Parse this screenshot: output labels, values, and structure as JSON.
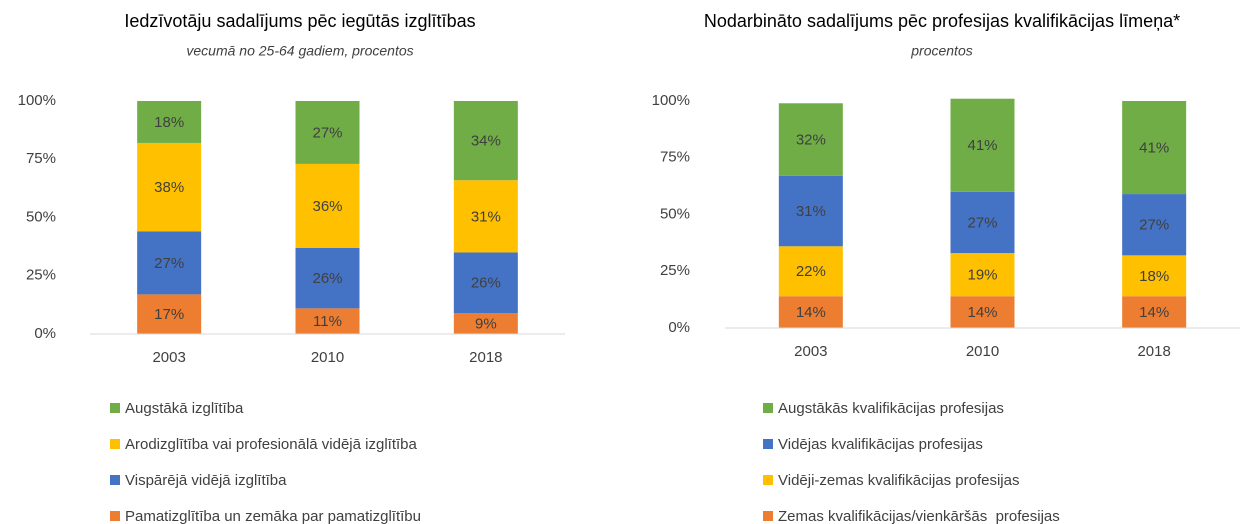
{
  "chart_data": [
    {
      "type": "stacked_bar",
      "title": "Iedzīvotāju sadalījums pēc iegūtās izglītības",
      "subtitle": "vecumā no 25-64 gadiem, procentos",
      "categories": [
        "2003",
        "2010",
        "2018"
      ],
      "ylim": [
        0,
        100
      ],
      "yticks": [
        {
          "value": 0,
          "label": "0%"
        },
        {
          "value": 25,
          "label": "25%"
        },
        {
          "value": 50,
          "label": "50%"
        },
        {
          "value": 75,
          "label": "75%"
        },
        {
          "value": 100,
          "label": "100%"
        }
      ],
      "series": [
        {
          "name": "Pamatizglītība un zemāka par pamatizglītību",
          "color": "#ed7d31",
          "values": [
            17,
            11,
            9
          ],
          "value_labels": [
            "17%",
            "11%",
            "9%"
          ]
        },
        {
          "name": "Vispārējā vidējā izglītība",
          "color": "#4472c4",
          "values": [
            27,
            26,
            26
          ],
          "value_labels": [
            "27%",
            "26%",
            "26%"
          ]
        },
        {
          "name": "Arodizglītība vai profesionālā vidējā izglītība",
          "color": "#ffc000",
          "values": [
            38,
            36,
            31
          ],
          "value_labels": [
            "38%",
            "36%",
            "31%"
          ]
        },
        {
          "name": "Augstākā izglītība",
          "color": "#70ad47",
          "values": [
            18,
            27,
            34
          ],
          "value_labels": [
            "18%",
            "27%",
            "34%"
          ]
        }
      ]
    },
    {
      "type": "stacked_bar",
      "title": "Nodarbināto sadalījums pēc profesijas kvalifikācijas līmeņa*",
      "subtitle": "procentos",
      "categories": [
        "2003",
        "2010",
        "2018"
      ],
      "ylim": [
        0,
        100
      ],
      "yticks": [
        {
          "value": 0,
          "label": "0%"
        },
        {
          "value": 25,
          "label": "25%"
        },
        {
          "value": 50,
          "label": "50%"
        },
        {
          "value": 75,
          "label": "75%"
        },
        {
          "value": 100,
          "label": "100%"
        }
      ],
      "series": [
        {
          "name": "Zemas kvalifikācijas/vienkāršās  profesijas",
          "color": "#ed7d31",
          "values": [
            14,
            14,
            14
          ],
          "value_labels": [
            "14%",
            "14%",
            "14%"
          ]
        },
        {
          "name": "Vidēji-zemas kvalifikācijas profesijas",
          "color": "#ffc000",
          "values": [
            22,
            19,
            18
          ],
          "value_labels": [
            "22%",
            "19%",
            "18%"
          ]
        },
        {
          "name": "Vidējas kvalifikācijas profesijas",
          "color": "#4472c4",
          "values": [
            31,
            27,
            27
          ],
          "value_labels": [
            "31%",
            "27%",
            "27%"
          ]
        },
        {
          "name": "Augstākās kvalifikācijas profesijas",
          "color": "#70ad47",
          "values": [
            32,
            41,
            41
          ],
          "value_labels": [
            "32%",
            "41%",
            "41%"
          ]
        }
      ]
    }
  ]
}
